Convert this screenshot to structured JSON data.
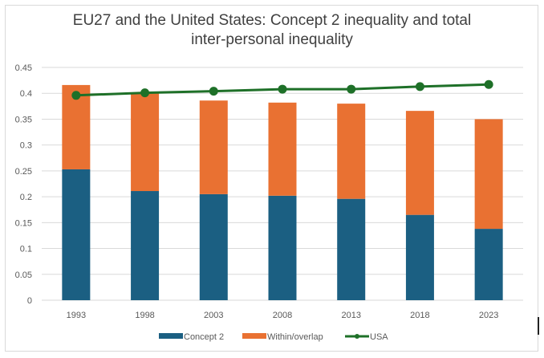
{
  "chart_data": {
    "type": "bar",
    "stacked": true,
    "title": "EU27 and the United States: Concept 2 inequality and total inter-personal inequality",
    "title_lines": [
      "EU27 and the United States: Concept 2 inequality and total",
      "inter-personal inequality"
    ],
    "xlabel": "",
    "ylabel": "",
    "categories": [
      "1993",
      "1998",
      "2003",
      "2008",
      "2013",
      "2018",
      "2023"
    ],
    "ylim": [
      0,
      0.45
    ],
    "yticks": [
      "0",
      "0.05",
      "0.1",
      "0.15",
      "0.2",
      "0.25",
      "0.3",
      "0.35",
      "0.4",
      "0.45"
    ],
    "grid": true,
    "legend_position": "bottom",
    "series": [
      {
        "name": "Concept 2",
        "type": "bar",
        "color": "#1b5f82",
        "values": [
          0.253,
          0.211,
          0.205,
          0.202,
          0.196,
          0.165,
          0.138
        ]
      },
      {
        "name": "Within/overlap",
        "type": "bar",
        "color": "#e97132",
        "values": [
          0.163,
          0.189,
          0.181,
          0.18,
          0.184,
          0.201,
          0.212
        ]
      },
      {
        "name": "USA",
        "type": "line",
        "color": "#1e7028",
        "values": [
          0.396,
          0.401,
          0.404,
          0.408,
          0.408,
          0.413,
          0.417
        ]
      }
    ]
  }
}
